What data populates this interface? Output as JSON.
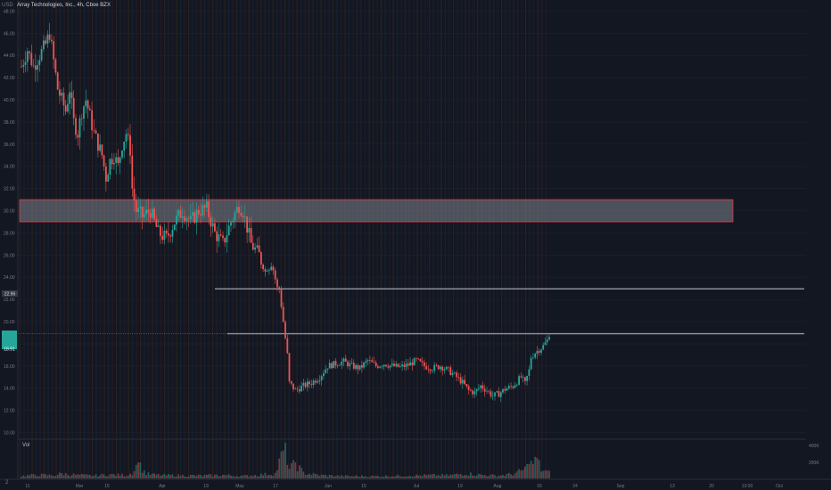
{
  "header": {
    "currency": "USD",
    "title": "Array Technologies, Inc., 4h, Cboe BZX"
  },
  "chart_data": {
    "type": "candlestick",
    "y_ticks": [
      "48.00",
      "46.00",
      "44.00",
      "42.00",
      "40.00",
      "38.00",
      "36.00",
      "34.00",
      "32.00",
      "30.00",
      "28.00",
      "26.00",
      "24.00",
      "22.00",
      "20.00",
      "18.00",
      "16.00",
      "14.00",
      "12.00",
      "10.00"
    ],
    "ylim": [
      9.4,
      49.0
    ],
    "x_ticks": [
      "11",
      "Mar",
      "15",
      "Apr",
      "19",
      "May",
      "17",
      "Jun",
      "15",
      "Jul",
      "19",
      "Aug",
      "16",
      "24",
      "Sep",
      "13",
      "20",
      "13:00",
      "Oct"
    ],
    "price_labels": {
      "current": "18.91",
      "level": "22.96"
    },
    "volume_label": "Vol",
    "volume_ticks": [
      "400K",
      "200K"
    ],
    "corner_label": "2",
    "zone": {
      "low": 29.0,
      "high": 31.0
    },
    "lines": [
      22.96,
      18.91
    ],
    "price_path": [
      [
        0,
        43.0
      ],
      [
        3,
        44.5
      ],
      [
        6,
        43.0
      ],
      [
        9,
        44.0
      ],
      [
        12,
        45.0
      ],
      [
        14,
        46.0
      ],
      [
        16,
        43.5
      ],
      [
        18,
        41.0
      ],
      [
        20,
        40.0
      ],
      [
        22,
        39.0
      ],
      [
        24,
        41.0
      ],
      [
        26,
        38.0
      ],
      [
        28,
        37.0
      ],
      [
        30,
        39.0
      ],
      [
        32,
        40.0
      ],
      [
        34,
        38.5
      ],
      [
        36,
        37.0
      ],
      [
        38,
        36.0
      ],
      [
        40,
        35.0
      ],
      [
        42,
        33.0
      ],
      [
        44,
        34.5
      ],
      [
        46,
        35.0
      ],
      [
        48,
        34.0
      ],
      [
        50,
        36.0
      ],
      [
        52,
        37.0
      ],
      [
        54,
        35.5
      ],
      [
        55,
        32.0
      ],
      [
        57,
        30.0
      ],
      [
        60,
        29.5
      ],
      [
        64,
        30.0
      ],
      [
        68,
        28.0
      ],
      [
        72,
        27.5
      ],
      [
        76,
        29.0
      ],
      [
        80,
        30.0
      ],
      [
        84,
        29.0
      ],
      [
        88,
        30.0
      ],
      [
        92,
        30.2
      ],
      [
        96,
        28.0
      ],
      [
        100,
        27.0
      ],
      [
        104,
        29.0
      ],
      [
        108,
        30.5
      ],
      [
        110,
        30.0
      ],
      [
        114,
        27.0
      ],
      [
        118,
        26.0
      ],
      [
        121,
        24.5
      ],
      [
        124,
        25.5
      ],
      [
        127,
        23.0
      ],
      [
        128,
        22.96
      ],
      [
        130,
        20.0
      ],
      [
        132,
        17.0
      ],
      [
        133,
        14.5
      ],
      [
        136,
        13.8
      ],
      [
        140,
        14.2
      ],
      [
        144,
        14.5
      ],
      [
        148,
        15.0
      ],
      [
        152,
        16.0
      ],
      [
        156,
        16.2
      ],
      [
        160,
        16.4
      ],
      [
        164,
        16.0
      ],
      [
        168,
        15.8
      ],
      [
        172,
        16.5
      ],
      [
        176,
        16.0
      ],
      [
        180,
        16.2
      ],
      [
        184,
        16.0
      ],
      [
        188,
        15.9
      ],
      [
        192,
        16.1
      ],
      [
        196,
        16.5
      ],
      [
        200,
        16.0
      ],
      [
        204,
        15.8
      ],
      [
        208,
        16.0
      ],
      [
        212,
        15.6
      ],
      [
        216,
        15.0
      ],
      [
        219,
        14.5
      ],
      [
        222,
        13.8
      ],
      [
        225,
        13.6
      ],
      [
        228,
        14.2
      ],
      [
        231,
        13.8
      ],
      [
        234,
        13.3
      ],
      [
        237,
        13.5
      ],
      [
        240,
        13.9
      ],
      [
        244,
        14.2
      ],
      [
        248,
        15.0
      ],
      [
        250,
        14.4
      ],
      [
        252,
        15.6
      ],
      [
        253,
        16.8
      ],
      [
        255,
        17.2
      ],
      [
        257,
        17.5
      ],
      [
        259,
        17.8
      ],
      [
        261,
        18.3
      ],
      [
        262,
        18.91
      ]
    ],
    "volumes": [
      [
        0,
        30
      ],
      [
        8,
        45
      ],
      [
        16,
        38
      ],
      [
        20,
        60
      ],
      [
        28,
        42
      ],
      [
        36,
        35
      ],
      [
        44,
        48
      ],
      [
        52,
        40
      ],
      [
        55,
        70
      ],
      [
        58,
        180
      ],
      [
        62,
        55
      ],
      [
        70,
        40
      ],
      [
        80,
        38
      ],
      [
        90,
        35
      ],
      [
        100,
        42
      ],
      [
        110,
        30
      ],
      [
        118,
        45
      ],
      [
        126,
        60
      ],
      [
        131,
        400
      ],
      [
        133,
        120
      ],
      [
        136,
        180
      ],
      [
        140,
        70
      ],
      [
        148,
        40
      ],
      [
        160,
        30
      ],
      [
        176,
        28
      ],
      [
        192,
        35
      ],
      [
        204,
        40
      ],
      [
        212,
        38
      ],
      [
        220,
        60
      ],
      [
        228,
        45
      ],
      [
        236,
        35
      ],
      [
        244,
        55
      ],
      [
        248,
        90
      ],
      [
        252,
        160
      ],
      [
        256,
        230
      ],
      [
        258,
        110
      ],
      [
        262,
        70
      ]
    ]
  }
}
